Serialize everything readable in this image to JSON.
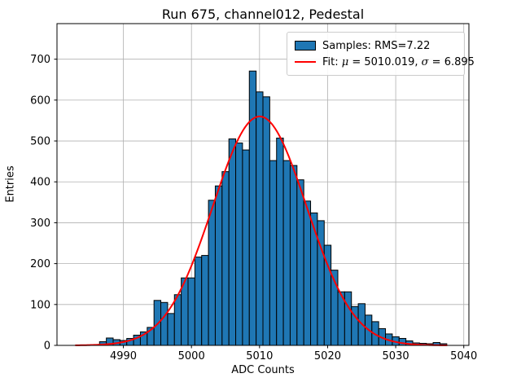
{
  "title": "Run 675, channel012, Pedestal",
  "xlabel": "ADC Counts",
  "ylabel": "Entries",
  "legend": {
    "samples_label": "Samples: RMS=7.22",
    "fit_label": "Fit: μ = 5010.019, σ = 6.895"
  },
  "colors": {
    "bar_fill": "#1f77b4",
    "bar_edge": "#000000",
    "fit_line": "#ff0000",
    "grid": "#b0b0b0",
    "spine": "#000000",
    "background": "#ffffff",
    "legend_border": "#cccccc"
  },
  "chart_data": {
    "type": "bar",
    "title": "Run 675, channel012, Pedestal",
    "xlabel": "ADC Counts",
    "ylabel": "Entries",
    "bin_width": 1,
    "categories": [
      4987,
      4988,
      4989,
      4990,
      4991,
      4992,
      4993,
      4994,
      4995,
      4996,
      4997,
      4998,
      4999,
      5000,
      5001,
      5002,
      5003,
      5004,
      5005,
      5006,
      5007,
      5008,
      5009,
      5010,
      5011,
      5012,
      5013,
      5014,
      5015,
      5016,
      5017,
      5018,
      5019,
      5020,
      5021,
      5022,
      5023,
      5024,
      5025,
      5026,
      5027,
      5028,
      5029,
      5030,
      5031,
      5032,
      5033,
      5034,
      5035,
      5036,
      5037
    ],
    "values": [
      9,
      18,
      14,
      12,
      17,
      25,
      33,
      44,
      110,
      105,
      78,
      124,
      165,
      165,
      216,
      220,
      355,
      390,
      425,
      505,
      495,
      478,
      671,
      620,
      608,
      452,
      507,
      452,
      440,
      405,
      353,
      324,
      305,
      245,
      184,
      131,
      131,
      95,
      102,
      74,
      58,
      41,
      28,
      21,
      17,
      11,
      6,
      5,
      4,
      7,
      4
    ],
    "series": [
      {
        "name": "Samples: RMS=7.22",
        "type": "histogram"
      },
      {
        "name": "Fit: μ = 5010.019, σ = 6.895",
        "type": "gaussian-fit"
      }
    ],
    "fit": {
      "type": "gaussian",
      "mu": 5010.019,
      "sigma": 6.895,
      "amplitude": 560,
      "x_start": 4983.0,
      "x_end": 5037.6
    },
    "x_ticks": [
      4990,
      5000,
      5010,
      5020,
      5030,
      5040
    ],
    "y_ticks": [
      0,
      100,
      200,
      300,
      400,
      500,
      600,
      700
    ],
    "xlim": [
      4980.25,
      5040.75
    ],
    "ylim": [
      0,
      787
    ],
    "grid": true,
    "legend_position": "upper right",
    "stats": {
      "rms": 7.22,
      "fit_mu": 5010.019,
      "fit_sigma": 6.895
    }
  }
}
